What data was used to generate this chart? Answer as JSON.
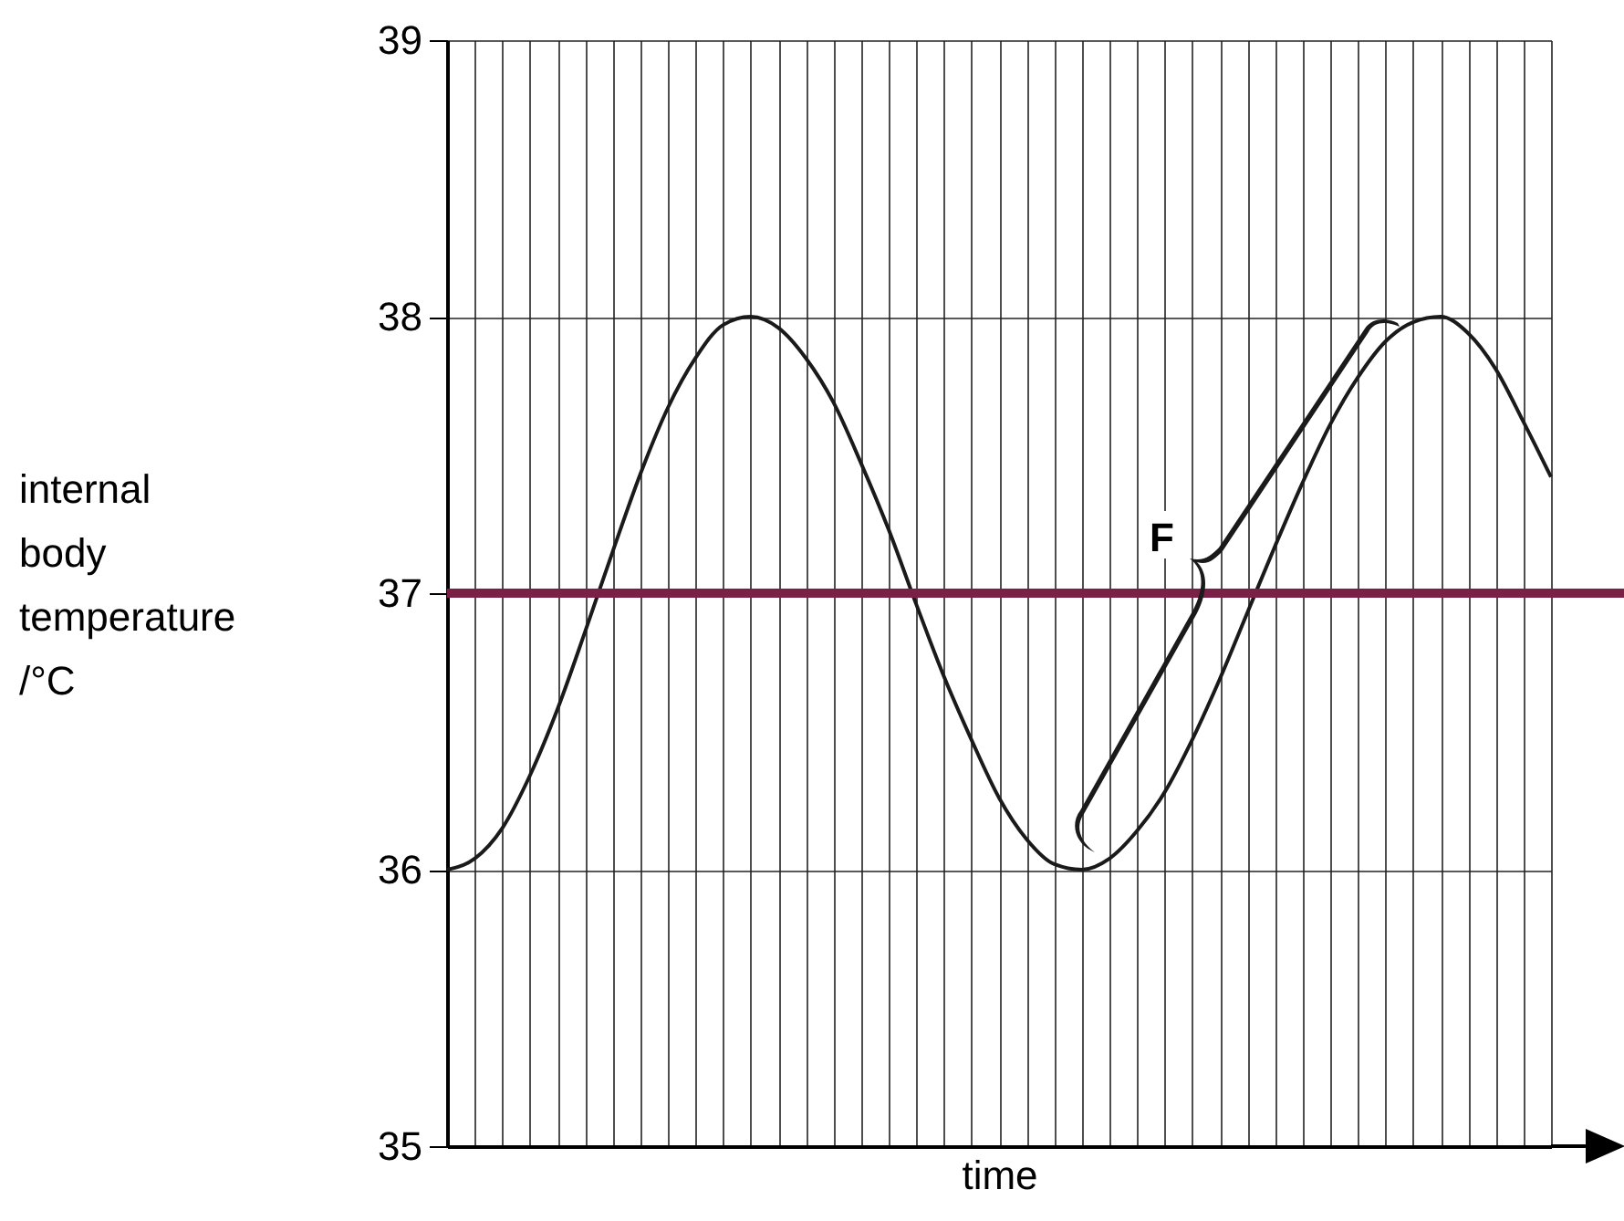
{
  "chart_data": {
    "type": "line",
    "ylabel": "internal body temperature /°C",
    "xlabel": "time",
    "categories": [
      null,
      null,
      null,
      null,
      null,
      null,
      null,
      null,
      null,
      null,
      null,
      null,
      null,
      null,
      null,
      null,
      null,
      null,
      null,
      null,
      null,
      null,
      null,
      null,
      null,
      null,
      null,
      null,
      null,
      null,
      null,
      null,
      null,
      null,
      null,
      null,
      null,
      null,
      null,
      null,
      null
    ],
    "series": [
      {
        "color": "#1a1a1a",
        "values": [
          36.0,
          36.04,
          36.15,
          36.34,
          36.58,
          36.86,
          37.15,
          37.43,
          37.67,
          37.85,
          37.97,
          38.0,
          37.96,
          37.85,
          37.69,
          37.47,
          37.23,
          36.96,
          36.7,
          36.47,
          36.26,
          36.11,
          36.02,
          36.0,
          36.04,
          36.14,
          36.28,
          36.47,
          36.69,
          36.93,
          37.17,
          37.4,
          37.61,
          37.78,
          37.91,
          37.98,
          38.0,
          37.94,
          37.81,
          37.62,
          37.42
        ]
      }
    ],
    "ylim": [
      35,
      39
    ],
    "yticks": [
      35,
      36,
      37,
      38,
      39
    ],
    "ref_lines": [
      {
        "axis": "y",
        "value": 37,
        "color": "#7a1f45"
      }
    ],
    "annotations": [
      "F"
    ],
    "grid": true,
    "tick_labels": "y"
  }
}
